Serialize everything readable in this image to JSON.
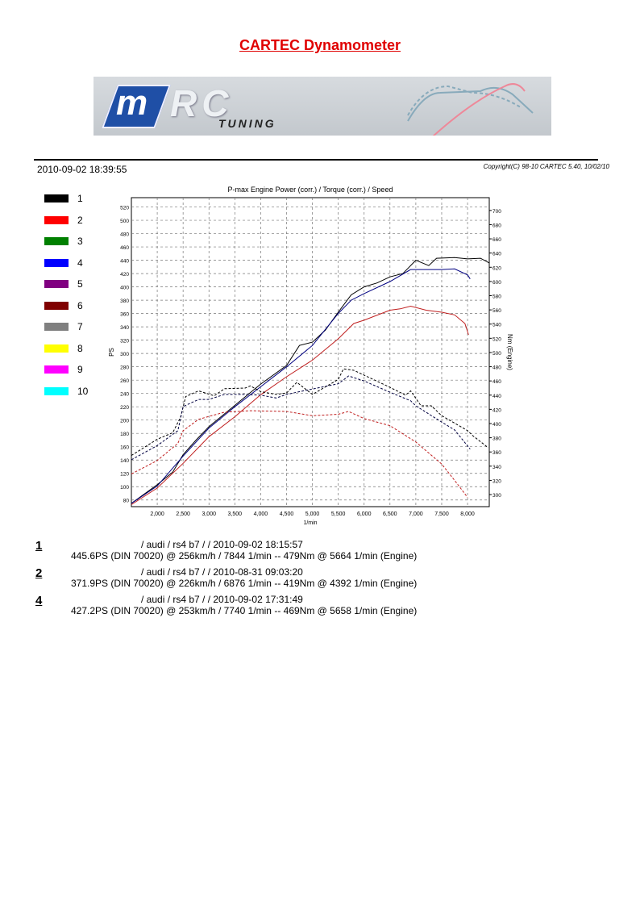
{
  "header": {
    "title": "CARTEC Dynamometer",
    "logo_text": "MRC TUNING",
    "timestamp": "2010-09-02 18:39:55",
    "copyright": "Copyright(C) 98-10 CARTEC 5.40, 10/02/10"
  },
  "legend": [
    {
      "label": "1",
      "color": "#000000"
    },
    {
      "label": "2",
      "color": "#ff0000"
    },
    {
      "label": "3",
      "color": "#008000"
    },
    {
      "label": "4",
      "color": "#0000ff"
    },
    {
      "label": "5",
      "color": "#800080"
    },
    {
      "label": "6",
      "color": "#800000"
    },
    {
      "label": "7",
      "color": "#808080"
    },
    {
      "label": "8",
      "color": "#ffff00"
    },
    {
      "label": "9",
      "color": "#ff00ff"
    },
    {
      "label": "10",
      "color": "#00ffff"
    }
  ],
  "chart_data": {
    "type": "line",
    "title": "P-max Engine Power (corr.) / Torque (corr.) / Speed",
    "xlabel": "1/min",
    "ylabel": "PS",
    "y2label": "Nm (Engine)",
    "xlim": [
      1500,
      8420
    ],
    "ylim": [
      70,
      534
    ],
    "y2lim": [
      283,
      718
    ],
    "xticks": [
      "2,000",
      "2,500",
      "3,000",
      "3,500",
      "4,000",
      "4,500",
      "5,000",
      "5,500",
      "6,000",
      "6,500",
      "7,000",
      "7,500",
      "8,000"
    ],
    "xtick_values": [
      2000,
      2500,
      3000,
      3500,
      4000,
      4500,
      5000,
      5500,
      6000,
      6500,
      7000,
      7500,
      8000
    ],
    "yticks": [
      80,
      100,
      120,
      140,
      160,
      180,
      200,
      220,
      240,
      260,
      280,
      300,
      320,
      340,
      360,
      380,
      400,
      420,
      440,
      460,
      480,
      500,
      520
    ],
    "y2ticks": [
      300,
      320,
      340,
      360,
      380,
      400,
      420,
      440,
      460,
      480,
      500,
      520,
      540,
      560,
      580,
      600,
      620,
      640,
      660,
      680,
      700
    ],
    "grid": true,
    "series": [
      {
        "name": "1 power",
        "run": "1",
        "axis": "left",
        "style": "solid",
        "color": "#000000",
        "x": [
          1500,
          2000,
          2300,
          2500,
          2750,
          3000,
          3500,
          4000,
          4500,
          4750,
          5000,
          5250,
          5500,
          5750,
          6000,
          6250,
          6500,
          6750,
          7000,
          7250,
          7400,
          7750,
          8000,
          8250,
          8420
        ],
        "y": [
          75,
          103,
          122,
          148,
          170,
          190,
          222,
          254,
          282,
          312,
          317,
          335,
          362,
          388,
          400,
          406,
          415,
          420,
          440,
          432,
          443,
          444,
          442,
          443,
          436
        ]
      },
      {
        "name": "4 power",
        "run": "4",
        "axis": "left",
        "style": "solid",
        "color": "#000080",
        "x": [
          1500,
          2000,
          2500,
          3000,
          3500,
          4000,
          4500,
          5000,
          5500,
          5750,
          6000,
          6500,
          6900,
          7500,
          7750,
          8000,
          8050
        ],
        "y": [
          75,
          101,
          146,
          188,
          220,
          250,
          280,
          312,
          360,
          380,
          390,
          408,
          426,
          426,
          427,
          418,
          412
        ]
      },
      {
        "name": "2 power",
        "run": "2",
        "axis": "left",
        "style": "solid",
        "color": "#c02020",
        "x": [
          1500,
          2000,
          2500,
          3000,
          3500,
          4000,
          4500,
          5000,
          5500,
          5800,
          6000,
          6500,
          6700,
          6900,
          7200,
          7500,
          7750,
          7950,
          8020
        ],
        "y": [
          73,
          98,
          135,
          175,
          205,
          238,
          265,
          290,
          322,
          345,
          350,
          365,
          367,
          371,
          365,
          362,
          358,
          345,
          328
        ]
      },
      {
        "name": "1 torque",
        "run": "1",
        "axis": "right",
        "style": "dashed",
        "color": "#000000",
        "x": [
          1500,
          2000,
          2300,
          2450,
          2550,
          2800,
          3100,
          3300,
          3700,
          3800,
          4000,
          4300,
          4500,
          4700,
          5000,
          5500,
          5600,
          5800,
          6500,
          6800,
          6900,
          7100,
          7300,
          7500,
          8000,
          8100,
          8400
        ],
        "y": [
          355,
          378,
          387,
          409,
          438,
          446,
          439,
          449,
          450,
          453,
          445,
          441,
          443,
          458,
          441,
          462,
          477,
          475,
          451,
          440,
          446,
          425,
          425,
          411,
          390,
          383,
          366
        ]
      },
      {
        "name": "4 torque",
        "run": "4",
        "axis": "right",
        "style": "dashed",
        "color": "#000040",
        "x": [
          1500,
          2000,
          2400,
          2500,
          2800,
          3000,
          3300,
          3700,
          4000,
          4300,
          4500,
          4700,
          5500,
          5700,
          6000,
          6500,
          6900,
          7000,
          7500,
          7750,
          8050
        ],
        "y": [
          349,
          369,
          390,
          424,
          434,
          434,
          441,
          441,
          440,
          436,
          441,
          444,
          456,
          467,
          460,
          444,
          432,
          425,
          402,
          391,
          364
        ]
      },
      {
        "name": "2 torque",
        "run": "2",
        "axis": "right",
        "style": "dashed",
        "color": "#c02020",
        "x": [
          1500,
          2000,
          2400,
          2500,
          2800,
          3300,
          3800,
          4500,
          5000,
          5500,
          5700,
          6000,
          6500,
          7000,
          7500,
          7750,
          8000
        ],
        "y": [
          329,
          348,
          372,
          390,
          406,
          416,
          418,
          417,
          411,
          413,
          417,
          407,
          397,
          374,
          343,
          320,
          296
        ]
      }
    ]
  },
  "results": [
    {
      "num": "1",
      "line1": "/ audi / rs4 b7 /  / 2010-09-02 18:15:57",
      "line2": "445.6PS (DIN 70020) @ 256km/h / 7844 1/min -- 479Nm @ 5664 1/min (Engine)"
    },
    {
      "num": "2",
      "line1": "/ audi / rs4 b7 /  / 2010-08-31 09:03:20",
      "line2": "371.9PS (DIN 70020) @ 226km/h / 6876 1/min -- 419Nm @ 4392 1/min (Engine)"
    },
    {
      "num": "4",
      "line1": "/ audi / rs4 b7 /  / 2010-09-02 17:31:49",
      "line2": "427.2PS (DIN 70020) @ 253km/h / 7740 1/min -- 469Nm @ 5658 1/min (Engine)"
    }
  ]
}
